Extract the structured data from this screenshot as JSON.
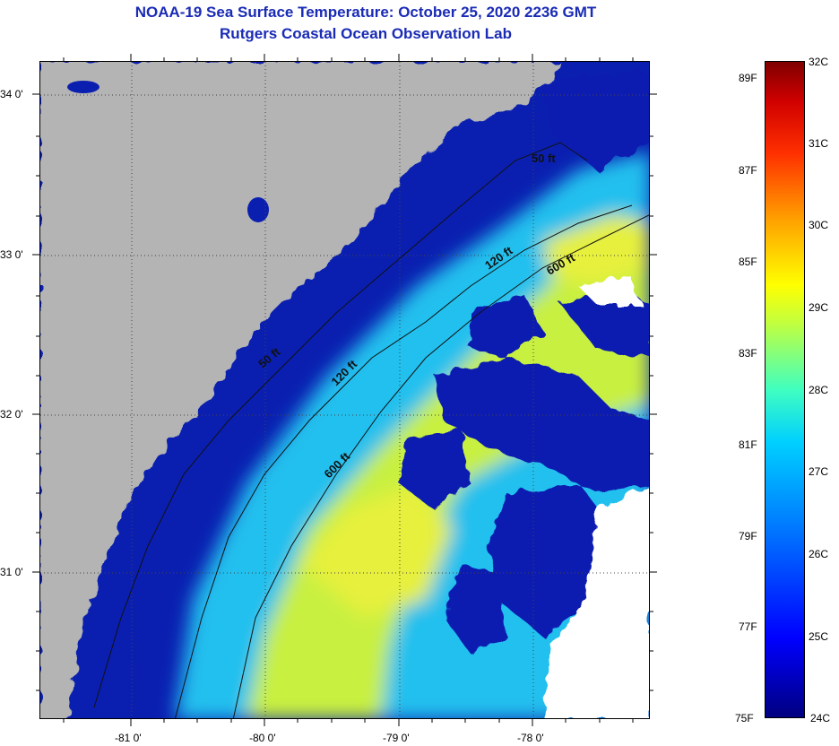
{
  "title": {
    "line1": "NOAA-19 Sea Surface Temperature:  October 25, 2020 2236 GMT",
    "line2": "Rutgers Coastal Ocean Observation Lab"
  },
  "map": {
    "lon_labels": [
      "-81 0'",
      "-80 0'",
      "-79 0'",
      "-78 0'"
    ],
    "lat_labels": [
      "34 0'",
      "33 0'",
      "32 0'",
      "31 0'"
    ],
    "contours": [
      "50 ft",
      "120 ft",
      "600 ft",
      "50 ft",
      "120 ft",
      "600 ft"
    ],
    "colors": {
      "land": "#b4b4b4",
      "cloud": "#ffffff",
      "cold": "#0a1fb0",
      "mid": "#22c0ee",
      "warm": "#c8f040"
    }
  },
  "colorbar": {
    "celsius": [
      "32C",
      "31C",
      "30C",
      "29C",
      "28C",
      "27C",
      "26C",
      "25C",
      "24C"
    ],
    "fahrenheit": [
      "89F",
      "87F",
      "85F",
      "83F",
      "81F",
      "79F",
      "77F",
      "75F"
    ]
  }
}
